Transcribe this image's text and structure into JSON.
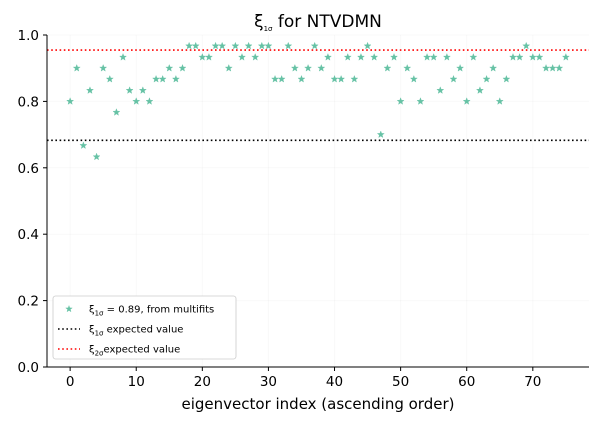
{
  "chart_data": {
    "type": "scatter",
    "title": {
      "main": "ξ",
      "sub": "1σ",
      "rest": " for NTVDMN"
    },
    "xlabel": "eigenvector index (ascending order)",
    "ylabel": "",
    "xlim": [
      -3.5,
      78.5
    ],
    "ylim": [
      0,
      1.0
    ],
    "xticks": [
      0,
      10,
      20,
      30,
      40,
      50,
      60,
      70
    ],
    "yticks": [
      0.0,
      0.2,
      0.4,
      0.6,
      0.8,
      1.0
    ],
    "ytick_labels": [
      "0.0",
      "0.2",
      "0.4",
      "0.6",
      "0.8",
      "1.0"
    ],
    "grid": true,
    "legend_position": "lower-left",
    "colors": {
      "points": "#66c2a5",
      "line1": "#000000",
      "line2": "#ff0000"
    },
    "series": [
      {
        "name": {
          "main": "ξ",
          "sub": "1σ",
          "rest": " = 0.89, from multifits"
        },
        "marker": "star",
        "x": [
          0,
          1,
          2,
          3,
          4,
          5,
          6,
          7,
          8,
          9,
          10,
          11,
          12,
          13,
          14,
          15,
          16,
          17,
          18,
          19,
          20,
          21,
          22,
          23,
          24,
          25,
          26,
          27,
          28,
          29,
          30,
          31,
          32,
          33,
          34,
          35,
          36,
          37,
          38,
          39,
          40,
          41,
          42,
          43,
          44,
          45,
          46,
          47,
          48,
          49,
          50,
          51,
          52,
          53,
          54,
          55,
          56,
          57,
          58,
          59,
          60,
          61,
          62,
          63,
          64,
          65,
          66,
          67,
          68,
          69,
          70,
          71,
          72,
          73,
          74,
          75
        ],
        "y": [
          0.8,
          0.9,
          0.667,
          0.833,
          0.633,
          0.9,
          0.867,
          0.767,
          0.933,
          0.833,
          0.8,
          0.833,
          0.8,
          0.867,
          0.867,
          0.9,
          0.867,
          0.9,
          0.967,
          0.967,
          0.933,
          0.933,
          0.967,
          0.967,
          0.9,
          0.967,
          0.933,
          0.967,
          0.933,
          0.967,
          0.967,
          0.867,
          0.867,
          0.967,
          0.9,
          0.867,
          0.9,
          0.967,
          0.9,
          0.933,
          0.867,
          0.867,
          0.933,
          0.867,
          0.933,
          0.967,
          0.933,
          0.7,
          0.9,
          0.933,
          0.8,
          0.9,
          0.867,
          0.8,
          0.933,
          0.933,
          0.833,
          0.933,
          0.867,
          0.9,
          0.8,
          0.933,
          0.833,
          0.867,
          0.9,
          0.8,
          0.867,
          0.933,
          0.933,
          0.967,
          0.933,
          0.933,
          0.9,
          0.9,
          0.9,
          0.933
        ]
      }
    ],
    "hlines": [
      {
        "name": {
          "main": "ξ",
          "sub": "1σ",
          "rest": " expected value"
        },
        "y": 0.6827,
        "style": "dotted",
        "color": "#000000"
      },
      {
        "name": {
          "main": "ξ",
          "sub": "2σ",
          "rest": "expected value"
        },
        "y": 0.9545,
        "style": "dotted",
        "color": "#ff0000"
      }
    ]
  }
}
